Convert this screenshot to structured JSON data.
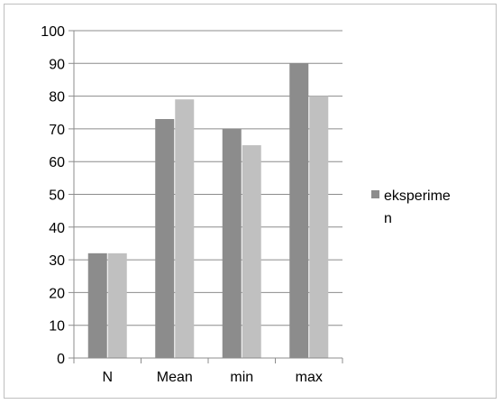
{
  "chart_data": {
    "type": "bar",
    "categories": [
      "N",
      "Mean",
      "min",
      "max"
    ],
    "series": [
      {
        "name": "eksperimen",
        "values": [
          32,
          73,
          70,
          90
        ],
        "color": "#8c8c8c"
      },
      {
        "values": [
          32,
          79,
          65,
          80
        ],
        "color": "#c0c0c0"
      }
    ],
    "ylim": [
      0,
      100
    ],
    "yticks": [
      0,
      10,
      20,
      30,
      40,
      50,
      60,
      70,
      80,
      90,
      100
    ],
    "grid": true,
    "legend_position": "right",
    "legend_lines": [
      "eksperime",
      "n"
    ],
    "colors": {
      "gridline": "#8c8c8c",
      "axis": "#8c8c8c"
    }
  }
}
